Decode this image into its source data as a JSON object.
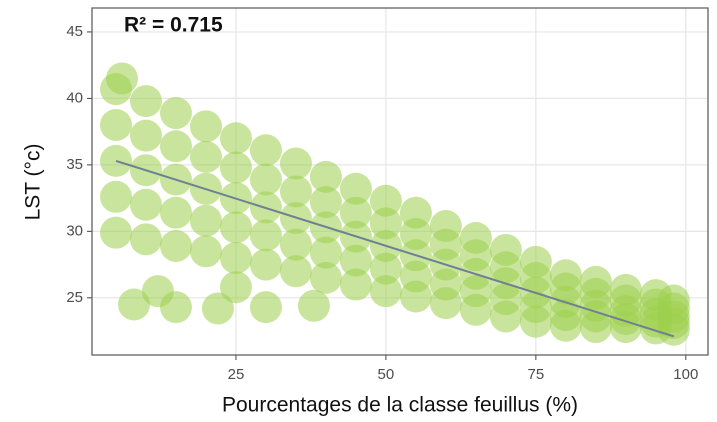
{
  "chart_data": {
    "type": "scatter",
    "annotation": "R² =  0.715",
    "x_label": "Pourcentages de la classe feuillus (%)",
    "y_label": "LST (°c)",
    "color": "#9ccf4c",
    "line_color": "#6f7f94",
    "grid": true,
    "xlim": [
      1,
      103.7
    ],
    "ylim": [
      20.7,
      46.8
    ],
    "xticks": [
      25,
      50,
      75,
      100
    ],
    "yticks": [
      25,
      30,
      35,
      40,
      45
    ],
    "x": [
      5,
      5,
      5,
      5,
      5,
      10,
      10,
      10,
      10,
      10,
      15,
      15,
      15,
      15,
      15,
      20,
      20,
      20,
      20,
      20,
      25,
      25,
      25,
      25,
      25,
      30,
      30,
      30,
      30,
      30,
      35,
      35,
      35,
      35,
      35,
      40,
      40,
      40,
      40,
      40,
      45,
      45,
      45,
      45,
      45,
      50,
      50,
      50,
      50,
      50,
      55,
      55,
      55,
      55,
      55,
      60,
      60,
      60,
      60,
      60,
      65,
      65,
      65,
      65,
      65,
      70,
      70,
      70,
      70,
      70,
      75,
      75,
      75,
      75,
      75,
      80,
      80,
      80,
      80,
      80,
      85,
      85,
      85,
      85,
      85,
      90,
      90,
      90,
      90,
      90,
      95,
      95,
      95,
      95,
      95,
      98,
      98,
      98,
      98,
      98,
      8,
      15,
      22,
      30,
      38,
      12,
      25,
      6
    ],
    "y": [
      40.7,
      38.0,
      35.3,
      32.6,
      29.9,
      39.8,
      37.2,
      34.6,
      32.0,
      29.4,
      38.9,
      36.4,
      33.9,
      31.4,
      28.9,
      37.9,
      35.6,
      33.2,
      30.8,
      28.5,
      37.0,
      34.8,
      32.5,
      30.3,
      28.0,
      36.1,
      33.9,
      31.8,
      29.7,
      27.5,
      35.1,
      33.0,
      31.0,
      29.0,
      27.0,
      34.1,
      32.2,
      30.3,
      28.4,
      26.5,
      33.2,
      31.4,
      29.6,
      27.8,
      26.0,
      32.3,
      30.6,
      28.9,
      27.2,
      25.5,
      31.4,
      29.8,
      28.2,
      26.6,
      25.1,
      30.4,
      29.0,
      27.5,
      26.0,
      24.6,
      29.5,
      28.2,
      26.8,
      25.5,
      24.1,
      28.6,
      27.3,
      26.1,
      24.9,
      23.6,
      27.7,
      26.5,
      25.4,
      24.3,
      23.2,
      26.7,
      25.7,
      24.7,
      23.7,
      22.9,
      26.2,
      25.3,
      24.4,
      23.6,
      22.8,
      25.6,
      24.8,
      24.0,
      23.4,
      22.8,
      25.2,
      24.5,
      23.8,
      23.2,
      22.7,
      24.8,
      24.2,
      23.6,
      23.1,
      22.6,
      24.5,
      24.3,
      24.2,
      24.3,
      24.4,
      25.5,
      25.8,
      41.5
    ],
    "regression": {
      "x": [
        5,
        98
      ],
      "y": [
        35.3,
        22.1
      ]
    }
  }
}
